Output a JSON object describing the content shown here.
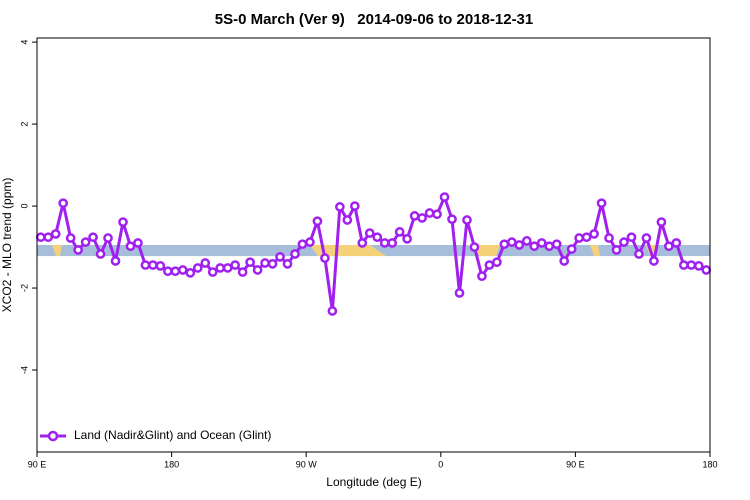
{
  "chart_data": {
    "type": "line",
    "title": "5S-0 March (Ver 9)   2014-09-06 to 2018-12-31",
    "xlabel": "Longitude (deg E)",
    "ylabel": "XCO2 - MLO trend (ppm)",
    "xlim": [
      90,
      540
    ],
    "xticks": [
      {
        "value": 90,
        "label": "90 E"
      },
      {
        "value": 180,
        "label": "180"
      },
      {
        "value": 270,
        "label": "90 W"
      },
      {
        "value": 360,
        "label": "0"
      },
      {
        "value": 450,
        "label": "90 E"
      },
      {
        "value": 540,
        "label": "180"
      }
    ],
    "ylim": [
      -6,
      4.1
    ],
    "yticks": [
      -4,
      -2,
      0,
      2,
      4
    ],
    "band": {
      "color": "#a7bedb",
      "values": [
        -1.22,
        -0.95
      ]
    },
    "legend": "bottom-left",
    "x": [
      92.5,
      97.5,
      102.5,
      107.5,
      112.5,
      117.5,
      122.5,
      127.5,
      132.5,
      137.5,
      142.5,
      147.5,
      152.5,
      157.5,
      162.5,
      167.5,
      172.5,
      177.5,
      182.5,
      187.5,
      192.5,
      197.5,
      202.5,
      207.5,
      212.5,
      217.5,
      222.5,
      227.5,
      232.5,
      237.5,
      242.5,
      247.5,
      252.5,
      257.5,
      262.5,
      267.5,
      272.5,
      277.5,
      282.5,
      287.5,
      292.5,
      297.5,
      302.5,
      307.5,
      312.5,
      317.5,
      322.5,
      327.5,
      332.5,
      337.5,
      342.5,
      347.5,
      352.5,
      357.5,
      362.5,
      367.5,
      372.5,
      377.5,
      382.5,
      387.5,
      392.5,
      397.5,
      402.5,
      407.5,
      412.5,
      417.5,
      422.5,
      427.5,
      432.5,
      437.5,
      442.5,
      447.5,
      452.5,
      457.5,
      462.5,
      467.5,
      472.5,
      477.5,
      482.5,
      487.5,
      492.5,
      497.5,
      502.5,
      507.5,
      512.5,
      517.5,
      522.5,
      527.5,
      532.5,
      537.5
    ],
    "series": [
      {
        "name": "Land (Nadir&Glint) and Ocean (Glint)",
        "color": "#a020f0",
        "values": [
          -0.76,
          -0.76,
          -0.68,
          0.07,
          -0.78,
          -1.07,
          -0.88,
          -0.76,
          -1.17,
          -0.78,
          -1.34,
          -0.39,
          -0.98,
          -0.9,
          -1.44,
          -1.44,
          -1.46,
          -1.59,
          -1.59,
          -1.56,
          -1.63,
          -1.51,
          -1.39,
          -1.61,
          -1.51,
          -1.51,
          -1.44,
          -1.61,
          -1.37,
          -1.56,
          -1.39,
          -1.41,
          -1.24,
          -1.41,
          -1.17,
          -0.93,
          -0.88,
          -0.37,
          -1.27,
          -2.56,
          -0.02,
          -0.34,
          0,
          -0.9,
          -0.66,
          -0.76,
          -0.9,
          -0.9,
          -0.63,
          -0.8,
          -0.24,
          -0.29,
          -0.17,
          -0.2,
          0.22,
          -0.32,
          -2.12,
          -0.34,
          -1.0,
          -1.71,
          -1.44,
          -1.37,
          -0.93,
          -0.88,
          -0.95,
          -0.85,
          -0.98,
          -0.9,
          -0.98,
          -0.93,
          -1.34,
          -1.05,
          -0.78,
          -0.76,
          -0.68,
          0.07,
          -0.78,
          -1.07,
          -0.88,
          -0.76,
          -1.17,
          -0.78,
          -1.34,
          -0.39,
          -0.98,
          -0.9,
          -1.44,
          -1.44,
          -1.46,
          -1.56
        ]
      }
    ]
  }
}
